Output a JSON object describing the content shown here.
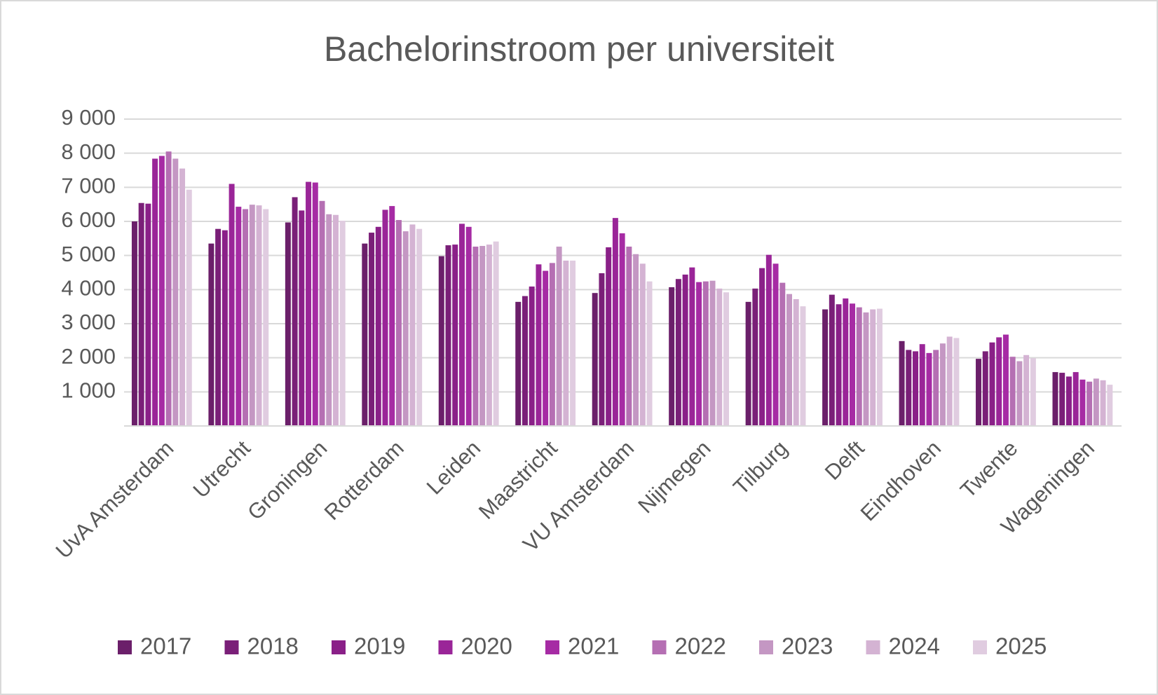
{
  "chart_data": {
    "type": "bar",
    "title": "Bachelorinstroom per universiteit",
    "categories": [
      "UvA Amsterdam",
      "Utrecht",
      "Groningen",
      "Rotterdam",
      "Leiden",
      "Maastricht",
      "VU Amsterdam",
      "Nijmegen",
      "Tilburg",
      "Delft",
      "Eindhoven",
      "Twente",
      "Wageningen"
    ],
    "series": [
      {
        "name": "2017",
        "color": "#6b1f6a",
        "values": [
          6000,
          5350,
          5970,
          5350,
          4980,
          3640,
          3900,
          4070,
          3640,
          3420,
          2490,
          1970,
          1580
        ]
      },
      {
        "name": "2018",
        "color": "#7a1f78",
        "values": [
          6540,
          5780,
          6710,
          5670,
          5300,
          3810,
          4480,
          4310,
          4030,
          3850,
          2230,
          2190,
          1560
        ]
      },
      {
        "name": "2019",
        "color": "#8a2088",
        "values": [
          6520,
          5740,
          6320,
          5840,
          5320,
          4090,
          5240,
          4440,
          4630,
          3570,
          2190,
          2450,
          1450
        ]
      },
      {
        "name": "2020",
        "color": "#9a2598",
        "values": [
          7840,
          7100,
          7160,
          6340,
          5930,
          4740,
          6100,
          4650,
          5020,
          3740,
          2400,
          2600,
          1580
        ]
      },
      {
        "name": "2021",
        "color": "#a62ba4",
        "values": [
          7920,
          6430,
          7140,
          6450,
          5840,
          4550,
          5650,
          4220,
          4760,
          3590,
          2140,
          2680,
          1360
        ]
      },
      {
        "name": "2022",
        "color": "#b56fb3",
        "values": [
          8050,
          6360,
          6600,
          6040,
          5260,
          4780,
          5260,
          4240,
          4200,
          3480,
          2230,
          2030,
          1300
        ]
      },
      {
        "name": "2023",
        "color": "#c497c3",
        "values": [
          7840,
          6490,
          6210,
          5710,
          5280,
          5260,
          5040,
          4260,
          3870,
          3330,
          2420,
          1900,
          1390
        ]
      },
      {
        "name": "2024",
        "color": "#d4b3d3",
        "values": [
          7550,
          6470,
          6190,
          5910,
          5320,
          4850,
          4760,
          4030,
          3720,
          3420,
          2620,
          2080,
          1340
        ]
      },
      {
        "name": "2025",
        "color": "#e0cce0",
        "values": [
          6930,
          6360,
          6020,
          5780,
          5410,
          4850,
          4240,
          3920,
          3510,
          3440,
          2580,
          1990,
          1210
        ]
      }
    ],
    "ylim": [
      0,
      9000
    ],
    "yticks": [
      {
        "value": 1000,
        "label": "1 000"
      },
      {
        "value": 2000,
        "label": "2 000"
      },
      {
        "value": 3000,
        "label": "3 000"
      },
      {
        "value": 4000,
        "label": "4 000"
      },
      {
        "value": 5000,
        "label": "5 000"
      },
      {
        "value": 6000,
        "label": "6 000"
      },
      {
        "value": 7000,
        "label": "7 000"
      },
      {
        "value": 8000,
        "label": "8 000"
      },
      {
        "value": 9000,
        "label": "9 000"
      }
    ],
    "grid": true,
    "legend": "bottom"
  }
}
